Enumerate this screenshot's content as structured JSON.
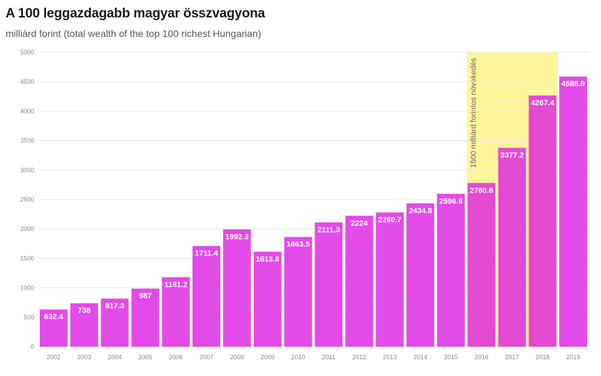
{
  "chart_data": {
    "type": "bar",
    "title": "A 100 leggazdagabb magyar összvagyona",
    "subtitle": "milliárd forint (total wealth of the top 100 richest Hungarian)",
    "categories": [
      "2002",
      "2003",
      "2004",
      "2005",
      "2006",
      "2007",
      "2008",
      "2009",
      "2010",
      "2011",
      "2012",
      "2013",
      "2014",
      "2015",
      "2016",
      "2017",
      "2018",
      "2019"
    ],
    "values": [
      632.4,
      738,
      817.3,
      987,
      1181.2,
      1711.4,
      1992.3,
      1613.8,
      1863.5,
      2111.3,
      2224,
      2280.7,
      2434.8,
      2596.6,
      2780.6,
      3377.2,
      4267.4,
      4588.9
    ],
    "value_labels": [
      "632.4",
      "738",
      "817.3",
      "987",
      "1181.2",
      "1711.4",
      "1992.3",
      "1613.8",
      "1863.5",
      "2111.3",
      "2224",
      "2280.7",
      "2434.8",
      "2596.6",
      "2780.6",
      "3377.2",
      "4267.4",
      "4588.9"
    ],
    "ylim": [
      0,
      5000
    ],
    "yticks": [
      0,
      500,
      1000,
      1500,
      2000,
      2500,
      3000,
      3500,
      4000,
      4500,
      5000
    ],
    "grid": true,
    "highlight": {
      "from": "2016",
      "to": "2018",
      "label": "1500 milliárd forintos növekedés",
      "color": "#fff59a"
    },
    "colors": {
      "bar": "#e24be8",
      "bar_highlight": "#e24bd2",
      "grid": "#e6e6e6"
    }
  }
}
